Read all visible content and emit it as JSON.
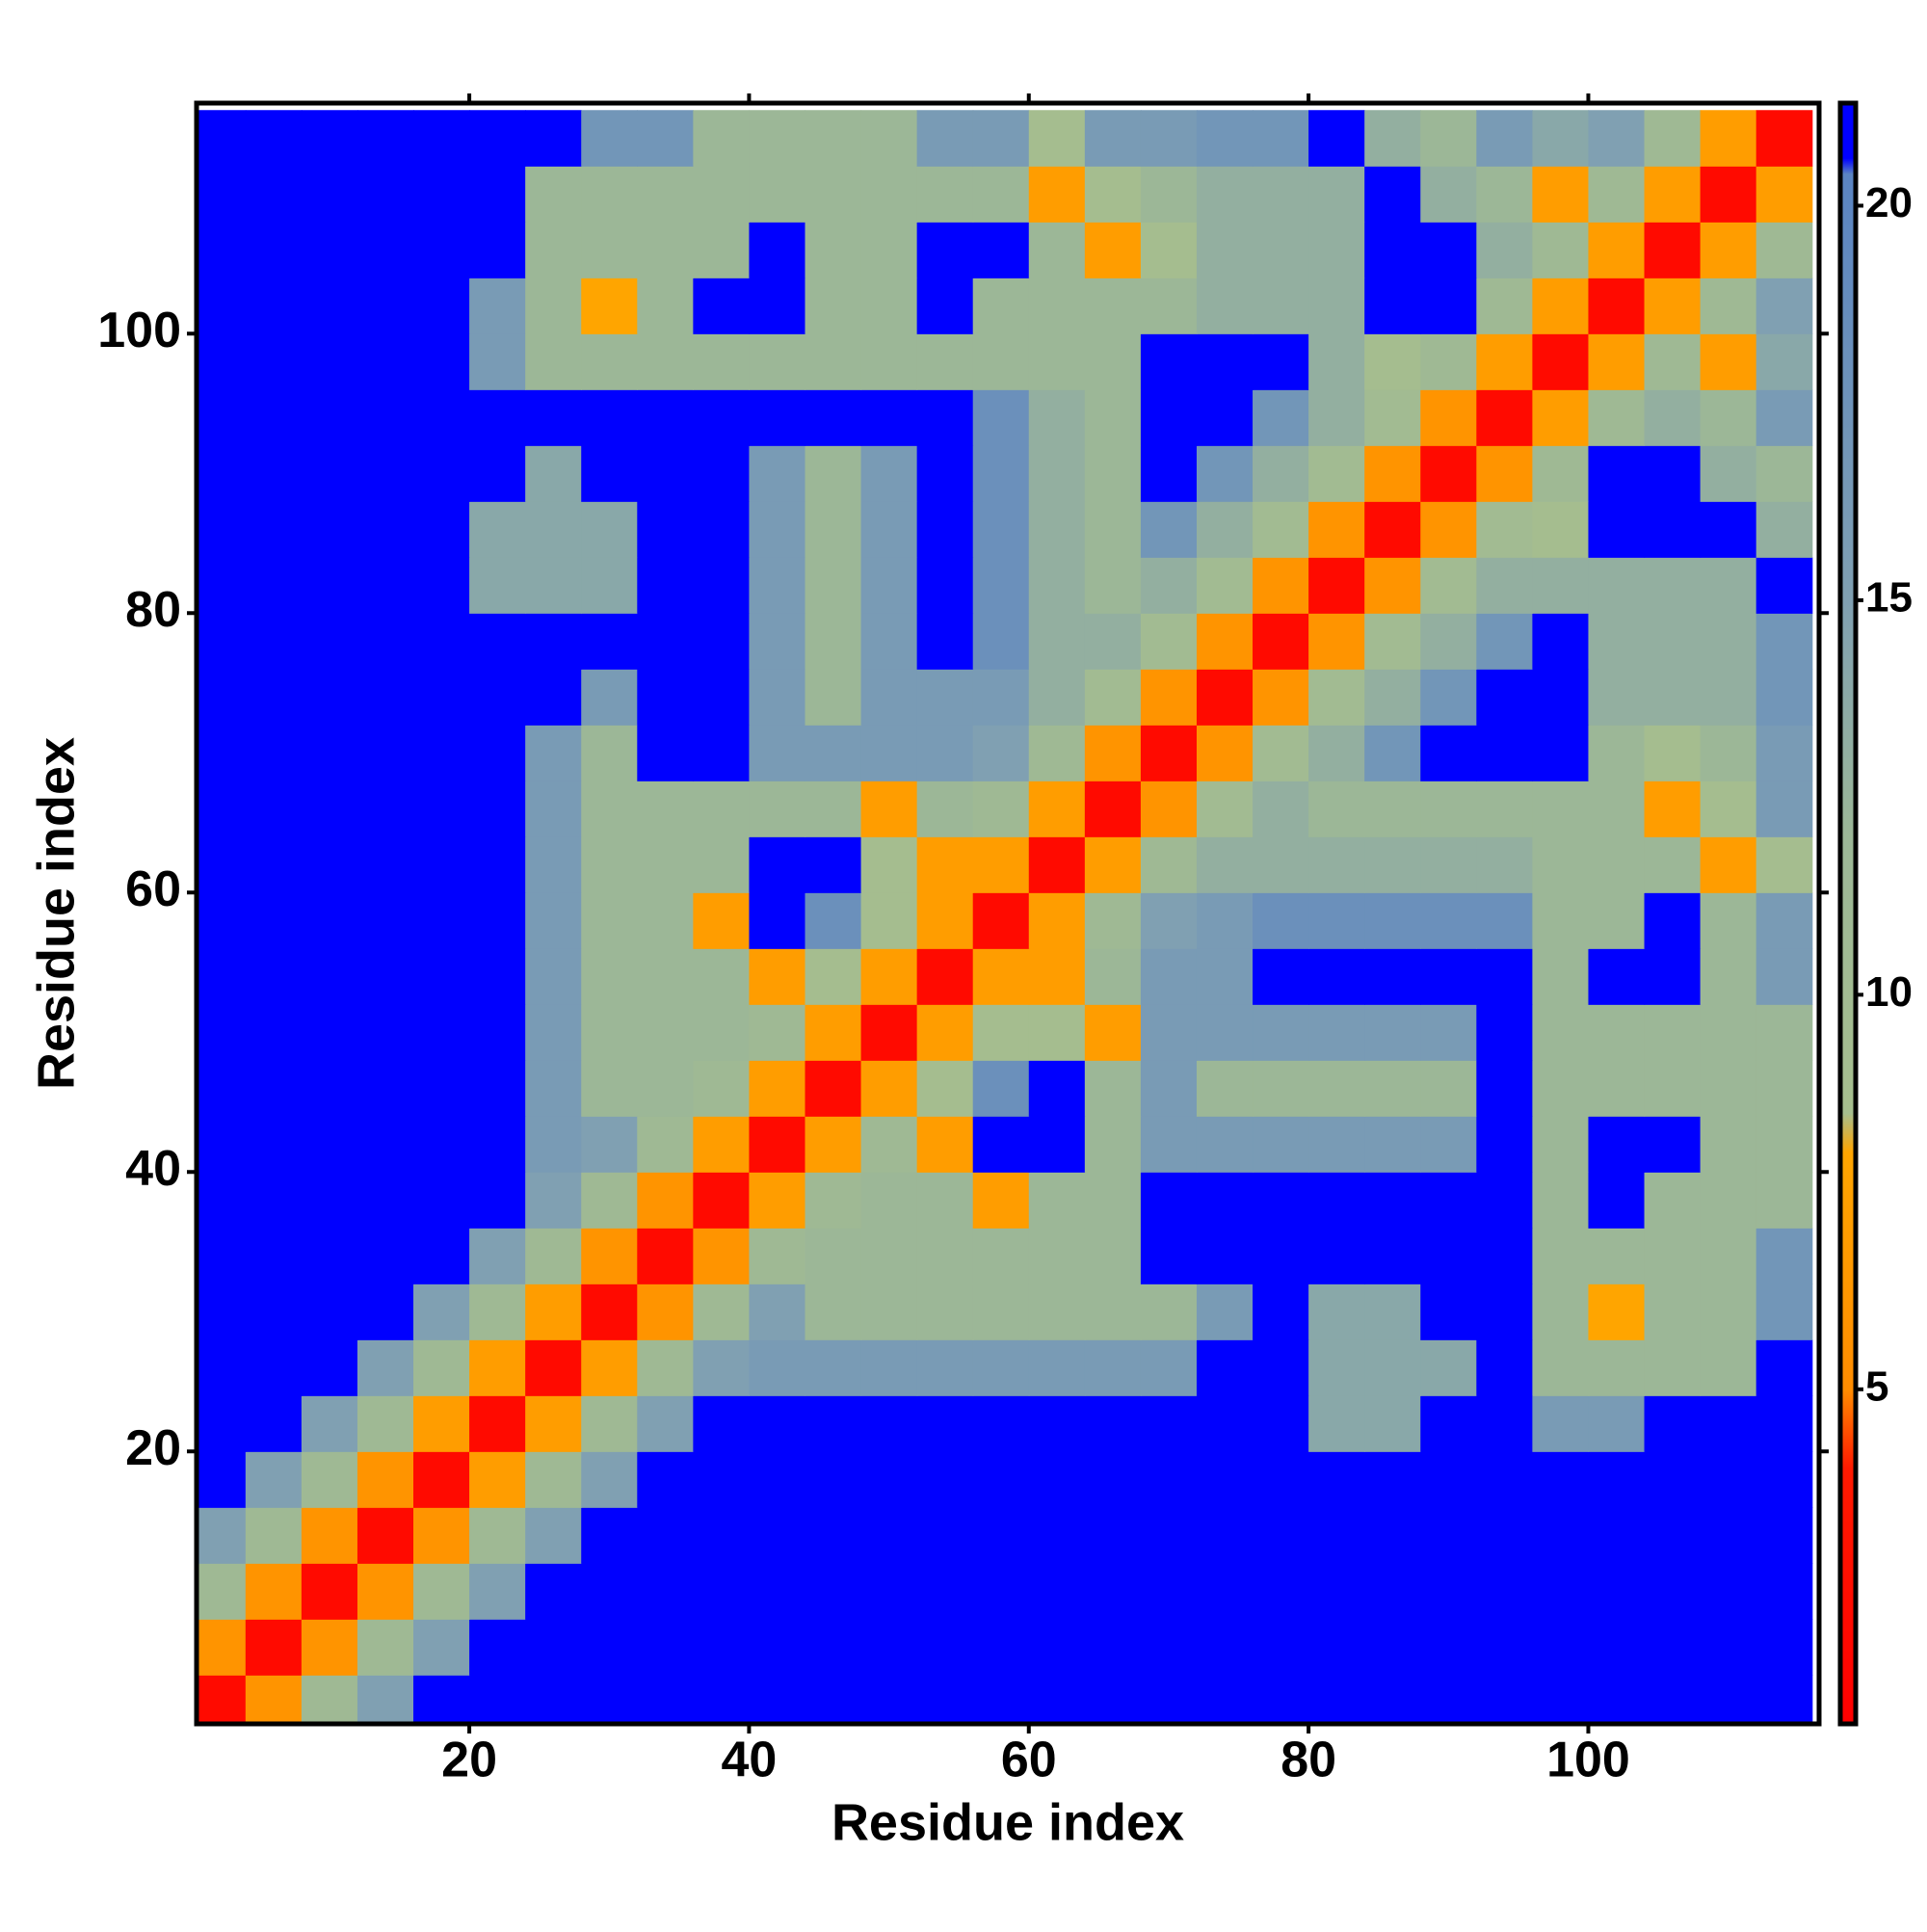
{
  "chart_data": {
    "type": "heatmap",
    "xlabel": "Residue index",
    "ylabel": "Residue index",
    "x": [
      2,
      6,
      10,
      14,
      18,
      22,
      26,
      30,
      34,
      38,
      42,
      46,
      50,
      54,
      58,
      62,
      66,
      70,
      74,
      78,
      82,
      86,
      90,
      94,
      98,
      102,
      106,
      110,
      114
    ],
    "y": [
      2,
      6,
      10,
      14,
      18,
      22,
      26,
      30,
      34,
      38,
      42,
      46,
      50,
      54,
      58,
      62,
      66,
      70,
      74,
      78,
      82,
      86,
      90,
      94,
      98,
      102,
      106,
      110,
      114
    ],
    "xlim": [
      0.5,
      116.5
    ],
    "ylim": [
      0.5,
      116.5
    ],
    "xticks": [
      20,
      40,
      60,
      80,
      100
    ],
    "yticks": [
      20,
      40,
      60,
      80,
      100
    ],
    "zlim": [
      0.76,
      21.3
    ],
    "zticks": [
      5,
      10,
      15,
      20
    ],
    "colorscale": [
      [
        0.76,
        "#ff0000"
      ],
      [
        4,
        "#ff1a00"
      ],
      [
        5,
        "#ff8c00"
      ],
      [
        8,
        "#ffa500"
      ],
      [
        8.5,
        "#a6be8e"
      ],
      [
        12,
        "#9cb797"
      ],
      [
        15,
        "#80a0b2"
      ],
      [
        20.4,
        "#5a84c2"
      ],
      [
        20.6,
        "#0000ff"
      ],
      [
        21.3,
        "#0000ff"
      ]
    ],
    "z": [
      [
        2,
        6,
        11,
        15,
        22,
        22,
        22,
        22,
        22,
        22,
        22,
        22,
        22,
        22,
        22,
        22,
        22,
        22,
        22,
        22,
        22,
        22,
        22,
        22,
        22,
        22,
        22,
        22,
        22
      ],
      [
        6,
        2,
        6,
        11,
        15,
        22,
        22,
        22,
        22,
        22,
        22,
        22,
        22,
        22,
        22,
        22,
        22,
        22,
        22,
        22,
        22,
        22,
        22,
        22,
        22,
        22,
        22,
        22,
        22
      ],
      [
        11,
        6,
        2,
        6,
        11,
        15,
        22,
        22,
        22,
        22,
        22,
        22,
        22,
        22,
        22,
        22,
        22,
        22,
        22,
        22,
        22,
        22,
        22,
        22,
        22,
        22,
        22,
        22,
        22
      ],
      [
        15,
        11,
        6,
        2,
        6,
        11,
        15,
        22,
        22,
        22,
        22,
        22,
        22,
        22,
        22,
        22,
        22,
        22,
        22,
        22,
        22,
        22,
        22,
        22,
        22,
        22,
        22,
        22,
        22
      ],
      [
        22,
        15,
        11,
        6,
        2,
        7,
        11,
        15,
        22,
        22,
        22,
        22,
        22,
        22,
        22,
        22,
        22,
        22,
        22,
        22,
        22,
        22,
        22,
        22,
        22,
        22,
        22,
        22,
        22
      ],
      [
        22,
        22,
        15,
        11,
        7,
        2,
        7,
        11,
        15,
        22,
        22,
        22,
        22,
        22,
        22,
        22,
        22,
        22,
        22,
        22,
        14,
        14,
        22,
        22,
        16,
        16,
        22,
        22,
        22
      ],
      [
        22,
        22,
        22,
        15,
        11,
        7,
        2,
        7,
        11,
        15,
        16,
        16,
        16,
        16,
        16,
        16,
        16,
        16,
        22,
        22,
        14,
        14,
        14,
        22,
        12,
        12,
        12,
        12,
        22
      ],
      [
        22,
        22,
        22,
        22,
        15,
        11,
        7,
        2,
        6,
        11,
        15,
        12,
        12,
        12,
        12,
        12,
        12,
        12,
        16,
        22,
        14,
        14,
        22,
        22,
        12,
        8,
        12,
        12,
        17
      ],
      [
        22,
        22,
        22,
        22,
        22,
        15,
        11,
        6,
        2,
        6,
        11,
        12,
        12,
        12,
        12,
        12,
        12,
        22,
        22,
        22,
        22,
        22,
        22,
        22,
        12,
        12,
        12,
        12,
        17
      ],
      [
        22,
        22,
        22,
        22,
        22,
        22,
        15,
        11,
        6,
        2,
        7,
        11,
        12,
        12,
        7,
        12,
        12,
        22,
        22,
        22,
        22,
        22,
        22,
        22,
        12,
        22,
        12,
        12,
        12
      ],
      [
        22,
        22,
        22,
        22,
        22,
        22,
        16,
        15,
        11,
        7,
        2,
        7,
        11,
        7,
        22,
        22,
        12,
        16,
        16,
        16,
        16,
        16,
        16,
        22,
        12,
        22,
        22,
        12,
        12
      ],
      [
        22,
        22,
        22,
        22,
        22,
        22,
        16,
        12,
        12,
        11,
        7,
        2,
        7,
        9,
        18,
        22,
        12,
        16,
        12,
        12,
        12,
        12,
        12,
        22,
        12,
        12,
        12,
        12,
        12
      ],
      [
        22,
        22,
        22,
        22,
        22,
        22,
        16,
        12,
        12,
        12,
        11,
        7,
        2,
        7,
        9,
        9,
        7,
        16,
        16,
        16,
        16,
        16,
        16,
        22,
        12,
        12,
        12,
        12,
        12
      ],
      [
        22,
        22,
        22,
        22,
        22,
        22,
        16,
        12,
        12,
        12,
        7,
        9,
        7,
        2,
        7,
        7,
        12,
        16,
        16,
        22,
        22,
        22,
        22,
        22,
        12,
        22,
        22,
        12,
        16
      ],
      [
        22,
        22,
        22,
        22,
        22,
        22,
        16,
        12,
        12,
        7,
        22,
        18,
        9,
        7,
        2,
        7,
        11,
        15,
        16,
        18,
        18,
        18,
        18,
        18,
        12,
        12,
        22,
        12,
        16
      ],
      [
        22,
        22,
        22,
        22,
        22,
        22,
        16,
        12,
        12,
        12,
        22,
        22,
        9,
        7,
        7,
        2,
        7,
        11,
        13,
        13,
        13,
        13,
        13,
        13,
        12,
        12,
        12,
        7,
        9
      ],
      [
        22,
        22,
        22,
        22,
        22,
        22,
        16,
        12,
        12,
        12,
        12,
        12,
        7,
        12,
        11,
        7,
        2,
        6,
        10,
        13,
        12,
        12,
        12,
        12,
        12,
        12,
        7,
        9,
        16
      ],
      [
        22,
        22,
        22,
        22,
        22,
        22,
        16,
        12,
        22,
        22,
        16,
        16,
        16,
        16,
        15,
        11,
        6,
        2,
        6,
        10,
        13,
        17,
        22,
        22,
        22,
        12,
        9,
        12,
        16
      ],
      [
        22,
        22,
        22,
        22,
        22,
        22,
        22,
        16,
        22,
        22,
        16,
        12,
        16,
        16,
        16,
        13,
        10,
        6,
        2,
        6,
        10,
        13,
        17,
        22,
        22,
        13,
        13,
        13,
        17
      ],
      [
        22,
        22,
        22,
        22,
        22,
        22,
        22,
        22,
        22,
        22,
        16,
        12,
        16,
        22,
        18,
        13,
        13,
        10,
        6,
        2,
        6,
        10,
        13,
        17,
        22,
        13,
        13,
        13,
        17
      ],
      [
        22,
        22,
        22,
        22,
        22,
        14,
        14,
        14,
        22,
        22,
        16,
        12,
        16,
        22,
        18,
        13,
        12,
        13,
        10,
        6,
        2,
        6,
        10,
        13,
        13,
        13,
        13,
        13,
        22
      ],
      [
        22,
        22,
        22,
        22,
        22,
        14,
        14,
        14,
        22,
        22,
        16,
        12,
        16,
        22,
        18,
        13,
        12,
        17,
        13,
        10,
        6,
        2,
        6,
        10,
        9,
        22,
        22,
        22,
        13
      ],
      [
        22,
        22,
        22,
        22,
        22,
        22,
        14,
        22,
        22,
        22,
        16,
        12,
        16,
        22,
        18,
        13,
        12,
        22,
        17,
        13,
        10,
        6,
        2,
        6,
        11,
        22,
        22,
        13,
        12
      ],
      [
        22,
        22,
        22,
        22,
        22,
        22,
        22,
        22,
        22,
        22,
        22,
        22,
        22,
        22,
        18,
        13,
        12,
        22,
        22,
        17,
        13,
        10,
        6,
        2,
        7,
        11,
        13,
        12,
        16
      ],
      [
        22,
        22,
        22,
        22,
        22,
        16,
        12,
        12,
        12,
        12,
        12,
        12,
        12,
        12,
        12,
        12,
        12,
        22,
        22,
        22,
        13,
        9,
        11,
        7,
        2,
        7,
        11,
        7,
        14
      ],
      [
        22,
        22,
        22,
        22,
        22,
        16,
        12,
        8,
        12,
        22,
        22,
        12,
        12,
        22,
        12,
        12,
        12,
        12,
        13,
        13,
        13,
        22,
        22,
        11,
        7,
        2,
        7,
        11,
        15
      ],
      [
        22,
        22,
        22,
        22,
        22,
        22,
        12,
        12,
        12,
        12,
        22,
        12,
        12,
        22,
        22,
        12,
        7,
        9,
        13,
        13,
        13,
        22,
        22,
        13,
        11,
        7,
        2,
        7,
        11
      ],
      [
        22,
        22,
        22,
        22,
        22,
        22,
        12,
        12,
        12,
        12,
        12,
        12,
        12,
        12,
        12,
        7,
        9,
        12,
        13,
        13,
        13,
        22,
        13,
        12,
        7,
        11,
        7,
        2,
        7
      ],
      [
        22,
        22,
        22,
        22,
        22,
        22,
        22,
        17,
        17,
        12,
        12,
        12,
        12,
        16,
        16,
        9,
        16,
        16,
        17,
        17,
        22,
        13,
        12,
        16,
        14,
        15,
        11,
        7,
        2
      ]
    ]
  }
}
